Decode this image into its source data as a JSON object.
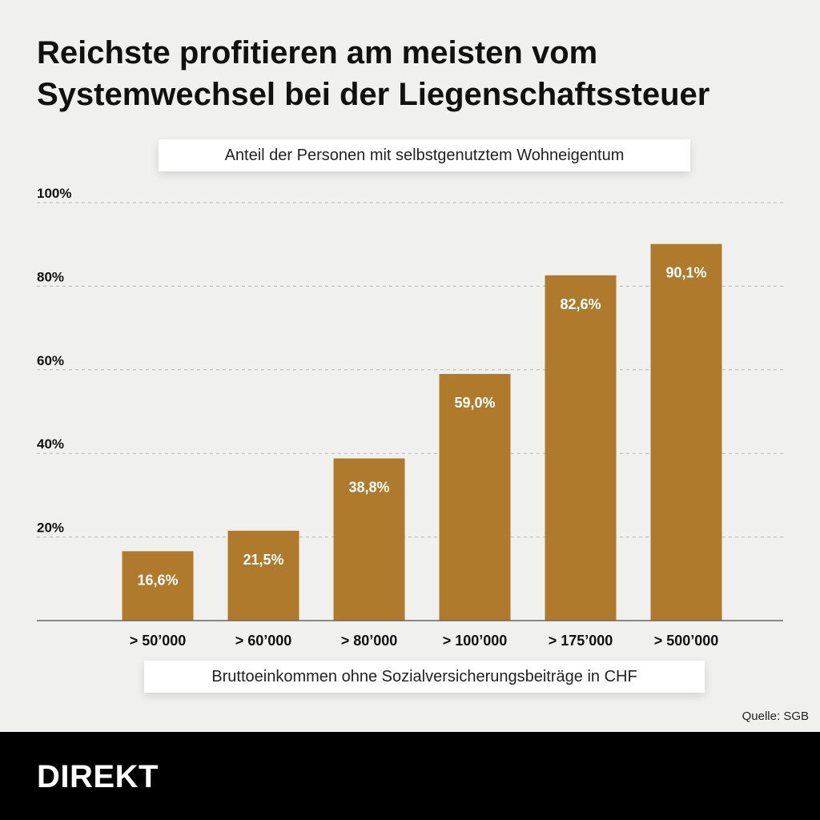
{
  "title": "Reichste profitieren am meisten vom Systemwechsel bei der Liegenschaftssteuer",
  "source": "Quelle: SGB",
  "brand": "DIREKT",
  "chart_data": {
    "type": "bar",
    "ylabel": "Anteil der Personen mit selbstgenutztem Wohneigentum",
    "xlabel": "Bruttoeinkommen ohne Sozialversicherungsbeiträge in CHF",
    "categories": [
      "> 50’000",
      "> 60’000",
      "> 80’000",
      "> 100’000",
      "> 175’000",
      "> 500’000"
    ],
    "values": [
      16.6,
      21.5,
      38.8,
      59.0,
      82.6,
      90.1
    ],
    "value_labels": [
      "16,6%",
      "21,5%",
      "38,8%",
      "59,0%",
      "82,6%",
      "90,1%"
    ],
    "yticks": [
      20,
      40,
      60,
      80,
      100
    ],
    "ytick_labels": [
      "20%",
      "40%",
      "60%",
      "80%",
      "100%"
    ],
    "ylim": [
      0,
      100
    ],
    "grid": true,
    "bar_color": "#b07a2c",
    "label_color": "#ffffff"
  }
}
